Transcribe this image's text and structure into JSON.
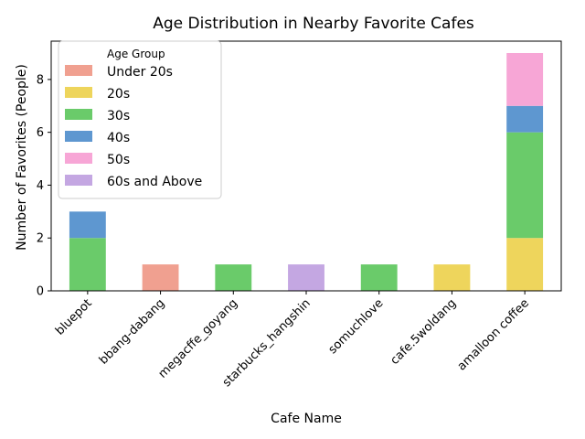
{
  "chart_data": {
    "type": "bar",
    "stacked": true,
    "title": "Age Distribution in Nearby Favorite Cafes",
    "xlabel": "Cafe Name",
    "ylabel": "Number of Favorites (People)",
    "ylim": [
      0,
      9.45
    ],
    "yticks": [
      0,
      2,
      4,
      6,
      8
    ],
    "grid": false,
    "legend_title": "Age Group",
    "legend_position": "top-left",
    "categories": [
      "bluepot",
      "bbang-dabang",
      "megacffe_goyang",
      "starbucks_hangshin",
      "somuchlove",
      "cafe.5woldang",
      "amalloon coffee"
    ],
    "series": [
      {
        "name": "Under 20s",
        "color": "#f0a090",
        "values": [
          0,
          1,
          0,
          0,
          0,
          0,
          0
        ]
      },
      {
        "name": "20s",
        "color": "#eed55c",
        "values": [
          0,
          0,
          0,
          0,
          0,
          1,
          2
        ]
      },
      {
        "name": "30s",
        "color": "#6acb6a",
        "values": [
          2,
          0,
          1,
          0,
          1,
          0,
          4
        ]
      },
      {
        "name": "40s",
        "color": "#5e97d0",
        "values": [
          1,
          0,
          0,
          0,
          0,
          0,
          1
        ]
      },
      {
        "name": "50s",
        "color": "#f7a6d6",
        "values": [
          0,
          0,
          0,
          0,
          0,
          0,
          2
        ]
      },
      {
        "name": "60s and Above",
        "color": "#c4a7e2",
        "values": [
          0,
          0,
          0,
          1,
          0,
          0,
          0
        ]
      }
    ]
  }
}
